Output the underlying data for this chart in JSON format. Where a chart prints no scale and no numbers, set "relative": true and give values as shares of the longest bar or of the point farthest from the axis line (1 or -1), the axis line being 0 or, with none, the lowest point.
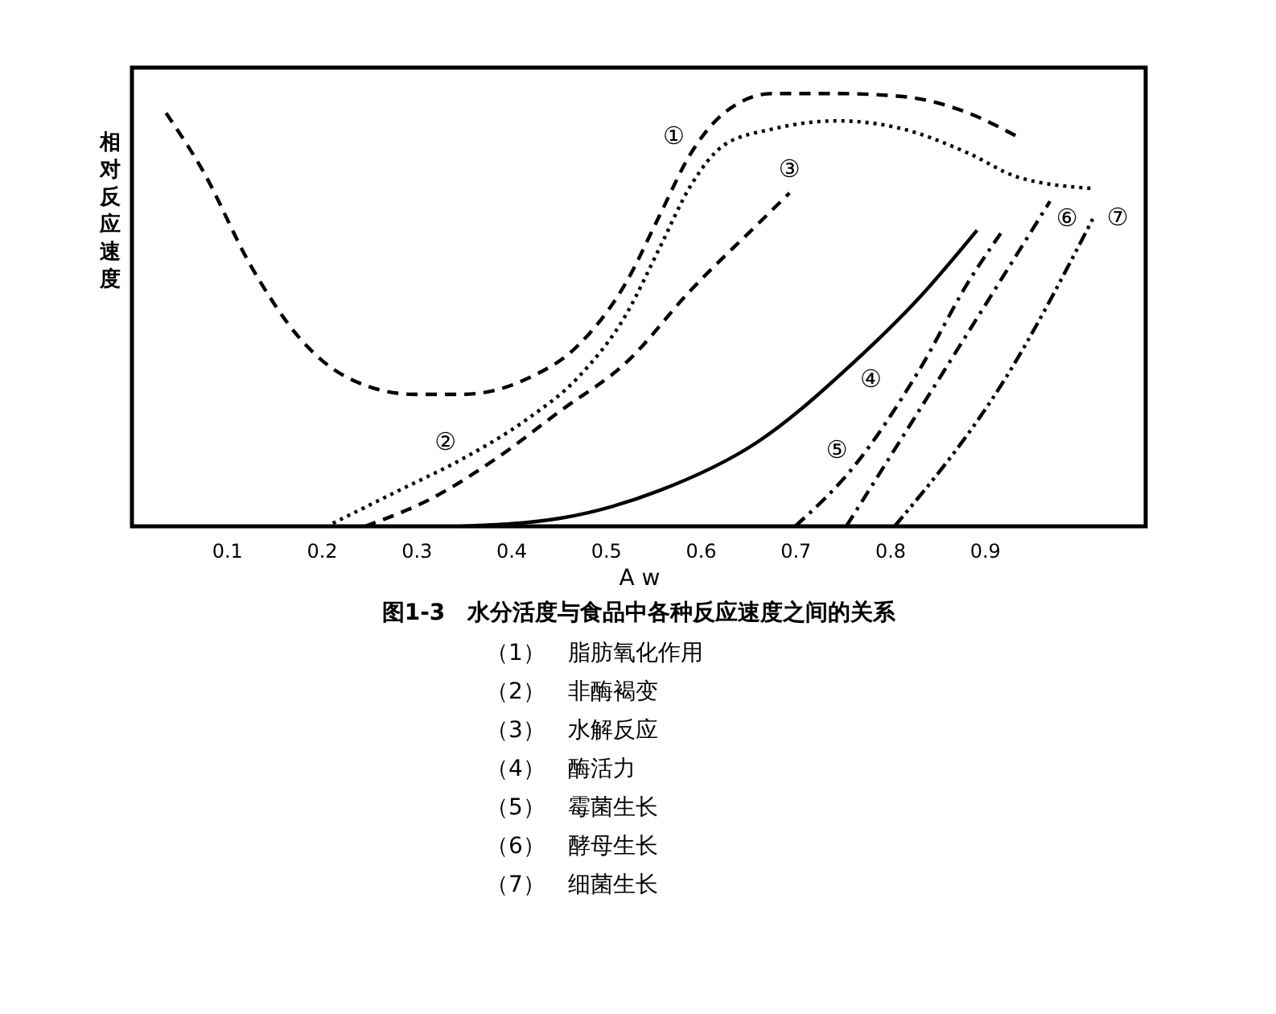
{
  "chart_data": {
    "type": "line",
    "relative": true,
    "title": "图1-3　水分活度与食品中各种反应速度之间的关系",
    "xlabel": "A w",
    "ylabel": "相对反应速度",
    "xlim": [
      0,
      1.07
    ],
    "xticks": [
      0.1,
      0.2,
      0.3,
      0.4,
      0.5,
      0.6,
      0.7,
      0.8,
      0.9
    ],
    "grid": false,
    "marker": "none",
    "series": [
      {
        "color": "#000000",
        "line_style": "dashed",
        "x": [
          0.036,
          0.074,
          0.126,
          0.177,
          0.229,
          0.298,
          0.349,
          0.418,
          0.47,
          0.522,
          0.556,
          0.59,
          0.625,
          0.676,
          0.745,
          0.814,
          0.883,
          0.935
        ],
        "values": [
          0.955,
          0.825,
          0.6,
          0.435,
          0.342,
          0.305,
          0.305,
          0.342,
          0.416,
          0.565,
          0.714,
          0.862,
          0.955,
          1.0,
          1.0,
          0.993,
          0.955,
          0.9
        ]
      },
      {
        "color": "#000000",
        "line_style": "dotted",
        "x": [
          0.212,
          0.281,
          0.349,
          0.418,
          0.47,
          0.522,
          0.556,
          0.59,
          0.625,
          0.676,
          0.745,
          0.814,
          0.883,
          0.935,
          1.012
        ],
        "values": [
          0.007,
          0.082,
          0.156,
          0.249,
          0.342,
          0.491,
          0.639,
          0.788,
          0.881,
          0.918,
          0.937,
          0.918,
          0.862,
          0.807,
          0.781
        ]
      },
      {
        "color": "#000000",
        "line_style": "dashed",
        "x": [
          0.246,
          0.315,
          0.384,
          0.453,
          0.522,
          0.59,
          0.659,
          0.694
        ],
        "values": [
          0.0,
          0.063,
          0.156,
          0.268,
          0.379,
          0.546,
          0.695,
          0.77
        ]
      },
      {
        "color": "#000000",
        "line_style": "solid",
        "x": [
          0.349,
          0.453,
          0.556,
          0.659,
          0.762,
          0.831,
          0.892
        ],
        "values": [
          0.0,
          0.019,
          0.082,
          0.193,
          0.379,
          0.528,
          0.684
        ]
      },
      {
        "color": "#000000",
        "line_style": "dashdot",
        "x": [
          0.7,
          0.762,
          0.831,
          0.883,
          0.917
        ],
        "values": [
          0.0,
          0.138,
          0.361,
          0.565,
          0.677
        ]
      },
      {
        "color": "#000000",
        "line_style": "dashdot",
        "x": [
          0.754,
          0.866,
          0.969
        ],
        "values": [
          0.0,
          0.39,
          0.751
        ]
      },
      {
        "color": "#000000",
        "line_style": "dashdotdot",
        "x": [
          0.805,
          0.922,
          1.015
        ],
        "values": [
          0.0,
          0.342,
          0.714
        ]
      }
    ],
    "annotations": [
      {
        "text": "①",
        "x": 0.59,
        "y": 0.862
      },
      {
        "text": "②",
        "x": 0.349,
        "y": 0.156
      },
      {
        "text": "③",
        "x": 0.694,
        "y": 0.77
      },
      {
        "text": "④",
        "x": 0.762,
        "y": 0.379
      },
      {
        "text": "⑤",
        "x": 0.762,
        "y": 0.138
      },
      {
        "text": "⑥",
        "x": 0.969,
        "y": 0.751
      },
      {
        "text": "⑦",
        "x": 1.015,
        "y": 0.714
      },
      "（1）　脂肪氧化作用",
      "（2）　非酶褐变",
      "（3）　水解反应",
      "（4）　酶活力",
      "（5）　霉菌生长",
      "（6）　酵母生长",
      "（7）　细菌生长"
    ]
  }
}
